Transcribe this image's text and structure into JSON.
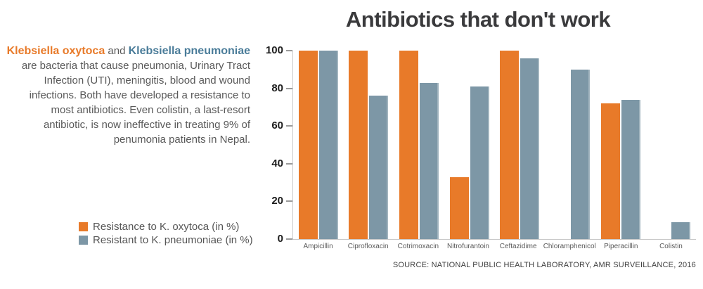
{
  "title": "Antibiotics that don't work",
  "intro": {
    "lead_oxytoca": "Klebsiella oxytoca",
    "lead_and": " and ",
    "lead_pneumoniae": "Klebsiella pneumoniae",
    "body": " are bacteria that cause pneumonia, Urinary Tract Infection (UTI), meningitis, blood and wound infections. Both have developed a resistance to most antibiotics. Even colistin, a last-resort antibiotic, is now ineffective in treating 9% of penumonia patients in Nepal."
  },
  "legend": {
    "items": [
      {
        "label": "Resistance to K. oxytoca (in %)",
        "color": "#e87a29"
      },
      {
        "label": "Resistant to K. pneumoniae (in %)",
        "color": "#7d97a6"
      }
    ]
  },
  "source": "SOURCE: NATIONAL PUBLIC HEALTH LABORATORY, AMR SURVEILLANCE, 2016",
  "colors": {
    "oxytoca_orange": "#e87a29",
    "pneumoniae_blue_bar": "#7d97a6",
    "pneumoniae_blue_text": "#4a7c99",
    "title_text": "#3a3a3c",
    "body_text": "#595959",
    "axis_line": "#c9c9c9"
  },
  "chart_data": {
    "type": "bar",
    "title": "Antibiotics that don't work",
    "categories": [
      "Ampicillin",
      "Ciprofloxacin",
      "Cotrimoxacin",
      "Nitrofurantoin",
      "Ceftazidime",
      "Chloramphenicol",
      "Piperacillin",
      "Colistin"
    ],
    "series": [
      {
        "name": "Resistance to K. oxytoca (in %)",
        "color": "#e87a29",
        "values": [
          100,
          100,
          100,
          33,
          100,
          null,
          72,
          null
        ]
      },
      {
        "name": "Resistant to K. pneumoniae (in %)",
        "color": "#7d97a6",
        "values": [
          100,
          76,
          83,
          81,
          96,
          90,
          74,
          9
        ]
      }
    ],
    "xlabel": "",
    "ylabel": "",
    "ylim": [
      0,
      100
    ],
    "yticks": [
      0,
      20,
      40,
      60,
      80,
      100
    ],
    "grid": false,
    "legend_position": "bottom-left"
  }
}
